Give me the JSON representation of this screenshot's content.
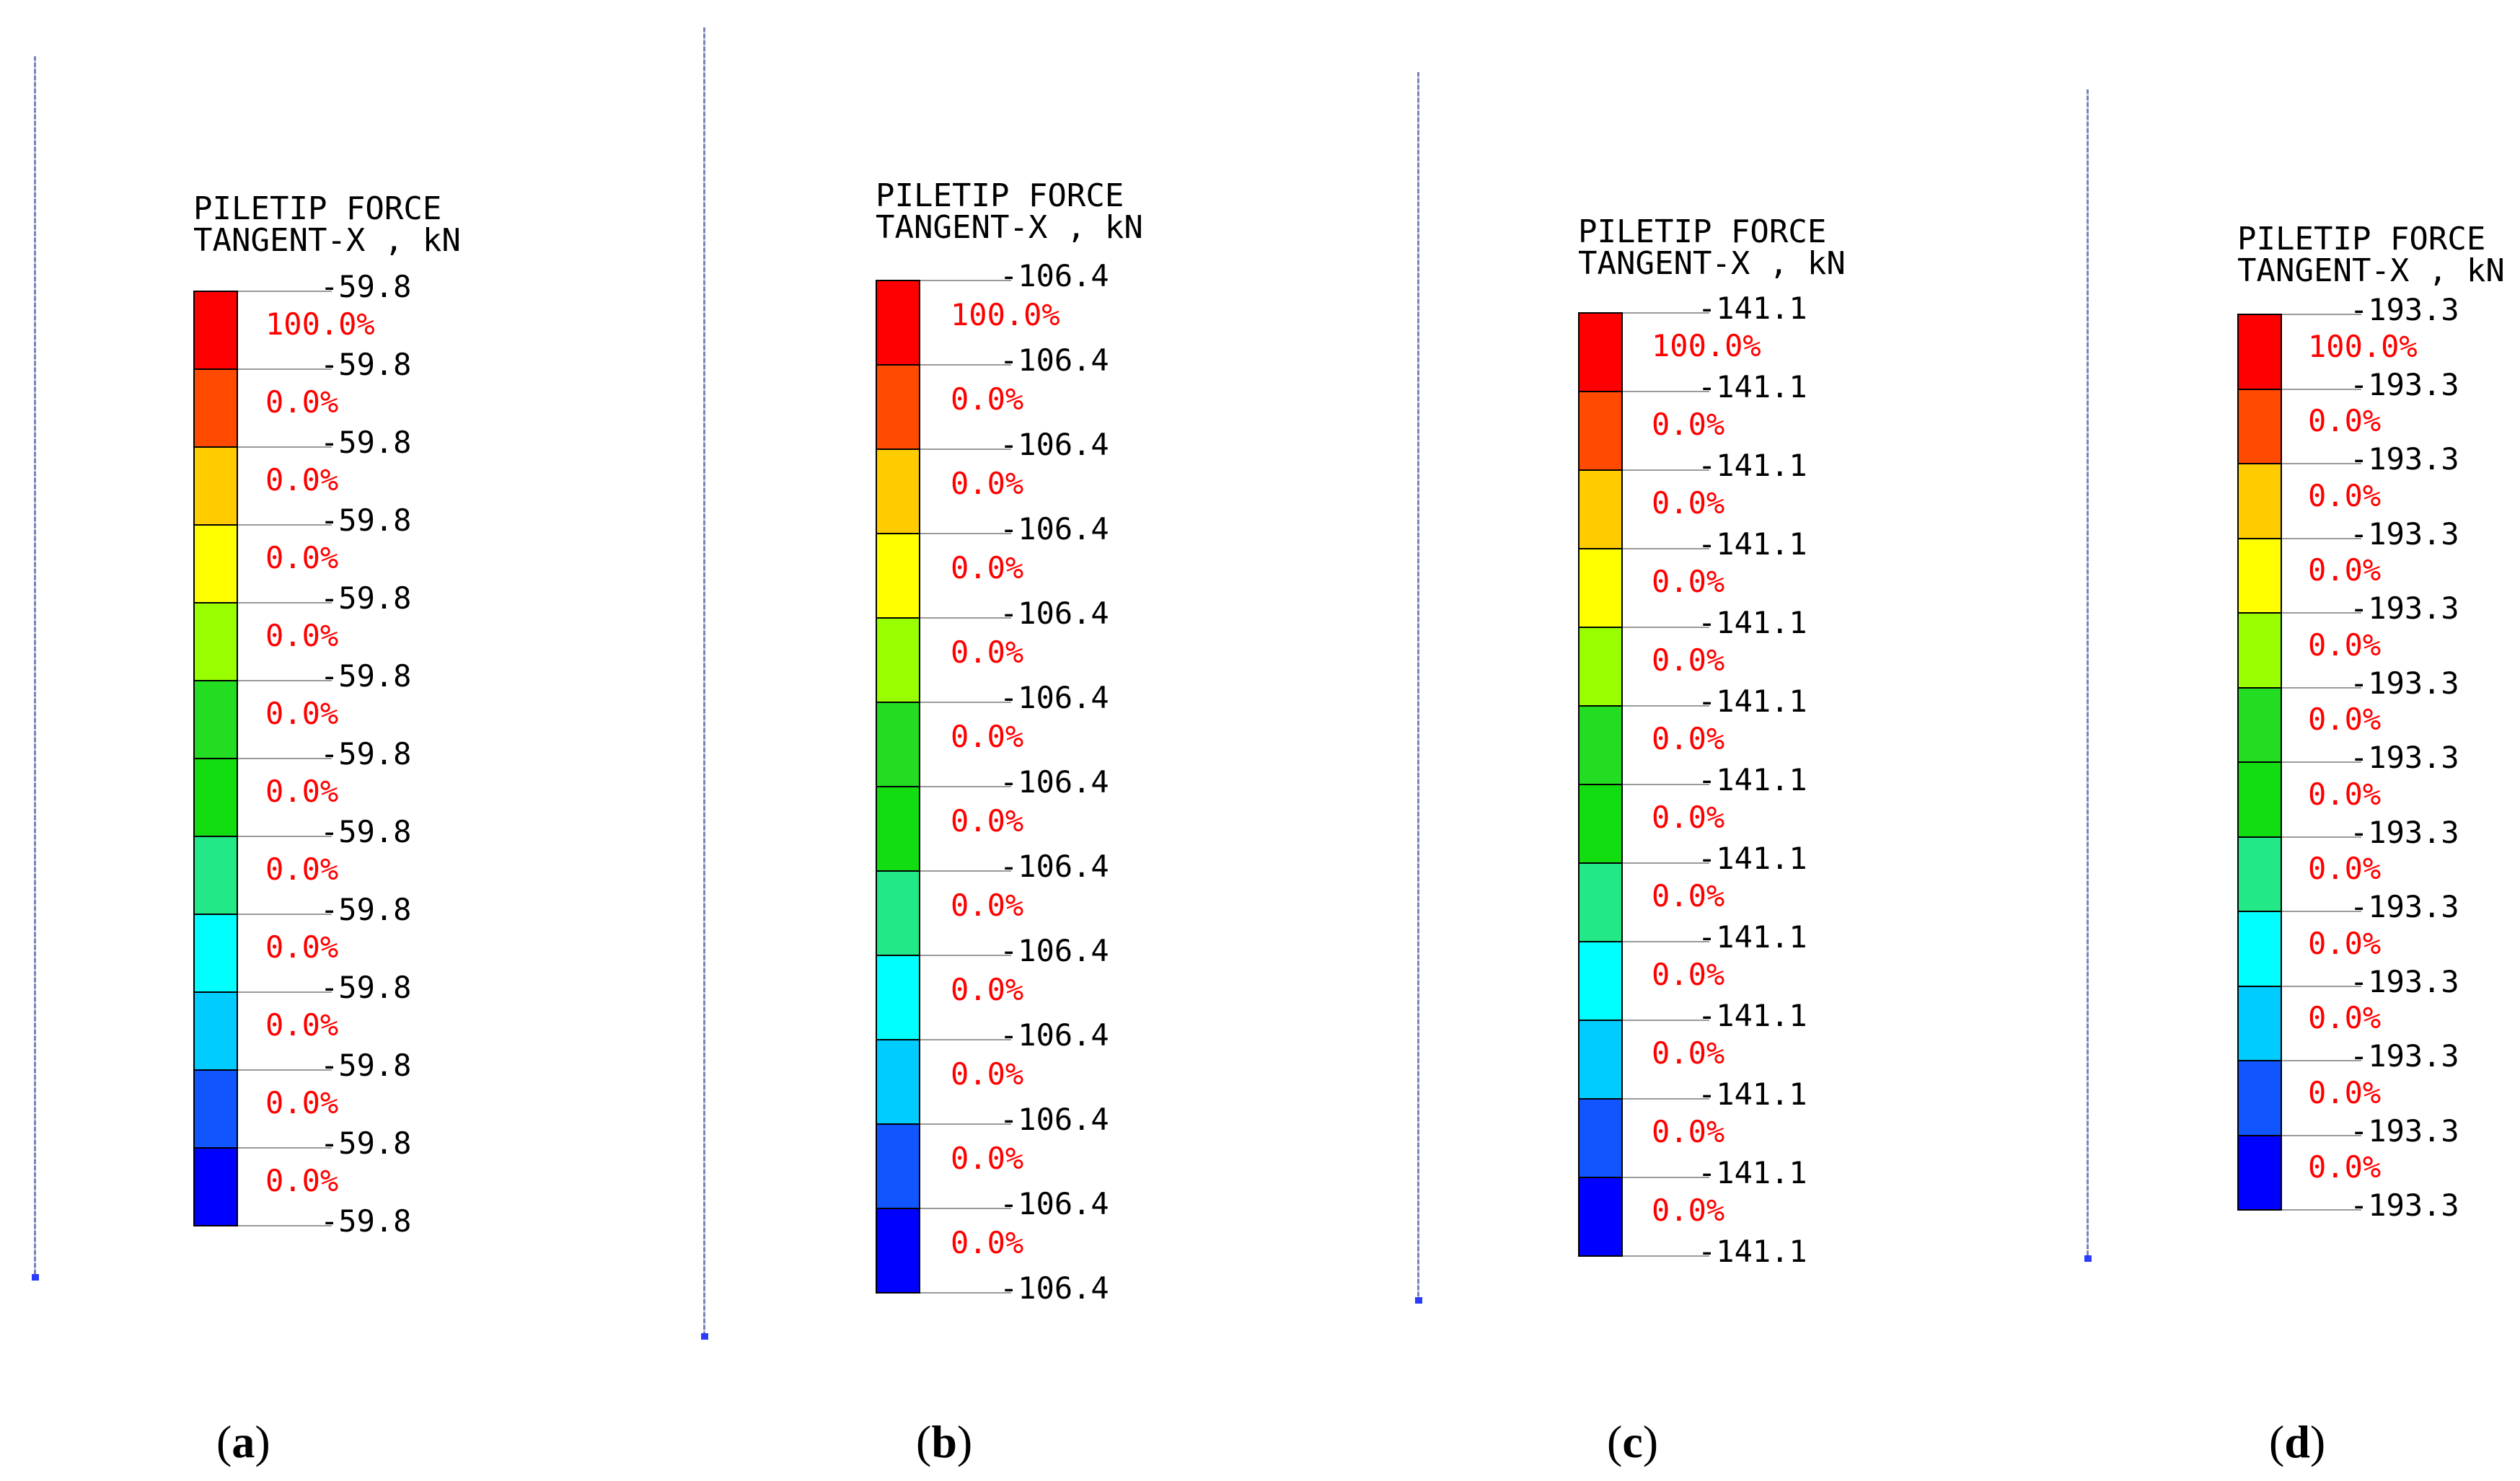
{
  "colors": [
    "#ff0000",
    "#ff4a00",
    "#ffcc00",
    "#ffff00",
    "#99ff00",
    "#22dd22",
    "#11dd11",
    "#22e888",
    "#00ffff",
    "#00ccff",
    "#1155ff",
    "#0000ff"
  ],
  "panels": [
    {
      "id": "a",
      "title_line1": "PILETIP FORCE",
      "title_line2": "TANGENT-X , kN",
      "ticks": [
        "-59.8",
        "-59.8",
        "-59.8",
        "-59.8",
        "-59.8",
        "-59.8",
        "-59.8",
        "-59.8",
        "-59.8",
        "-59.8",
        "-59.8",
        "-59.8",
        "-59.8"
      ],
      "percents": [
        "100.0%",
        "0.0%",
        "0.0%",
        "0.0%",
        "0.0%",
        "0.0%",
        "0.0%",
        "0.0%",
        "0.0%",
        "0.0%",
        "0.0%",
        "0.0%"
      ],
      "caption_letter": "a"
    },
    {
      "id": "b",
      "title_line1": "PILETIP FORCE",
      "title_line2": "TANGENT-X , kN",
      "ticks": [
        "-106.4",
        "-106.4",
        "-106.4",
        "-106.4",
        "-106.4",
        "-106.4",
        "-106.4",
        "-106.4",
        "-106.4",
        "-106.4",
        "-106.4",
        "-106.4",
        "-106.4"
      ],
      "percents": [
        "100.0%",
        "0.0%",
        "0.0%",
        "0.0%",
        "0.0%",
        "0.0%",
        "0.0%",
        "0.0%",
        "0.0%",
        "0.0%",
        "0.0%",
        "0.0%"
      ],
      "caption_letter": "b"
    },
    {
      "id": "c",
      "title_line1": "PILETIP FORCE",
      "title_line2": "TANGENT-X , kN",
      "ticks": [
        "-141.1",
        "-141.1",
        "-141.1",
        "-141.1",
        "-141.1",
        "-141.1",
        "-141.1",
        "-141.1",
        "-141.1",
        "-141.1",
        "-141.1",
        "-141.1",
        "-141.1"
      ],
      "percents": [
        "100.0%",
        "0.0%",
        "0.0%",
        "0.0%",
        "0.0%",
        "0.0%",
        "0.0%",
        "0.0%",
        "0.0%",
        "0.0%",
        "0.0%",
        "0.0%"
      ],
      "caption_letter": "c"
    },
    {
      "id": "d",
      "title_line1": "PILETIP FORCE",
      "title_line2": "TANGENT-X , kN",
      "ticks": [
        "-193.3",
        "-193.3",
        "-193.3",
        "-193.3",
        "-193.3",
        "-193.3",
        "-193.3",
        "-193.3",
        "-193.3",
        "-193.3",
        "-193.3",
        "-193.3",
        "-193.3"
      ],
      "percents": [
        "100.0%",
        "0.0%",
        "0.0%",
        "0.0%",
        "0.0%",
        "0.0%",
        "0.0%",
        "0.0%",
        "0.0%",
        "0.0%",
        "0.0%",
        "0.0%"
      ],
      "caption_letter": "d"
    }
  ]
}
